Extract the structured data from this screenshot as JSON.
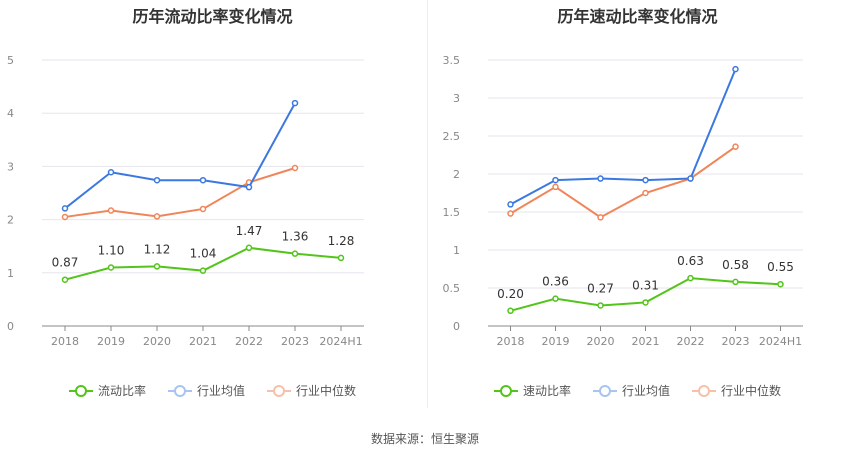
{
  "footer": "数据来源：恒生聚源",
  "chart_data": [
    {
      "type": "line",
      "title": "历年流动比率变化情况",
      "categories": [
        "2018",
        "2019",
        "2020",
        "2021",
        "2022",
        "2023",
        "2024H1"
      ],
      "ylim": [
        0,
        5
      ],
      "yticks": [
        "0",
        "1",
        "2",
        "3",
        "4",
        "5"
      ],
      "grid": true,
      "legend_position": "bottom",
      "series": [
        {
          "name": "流动比率",
          "color": "#52c41a",
          "values": [
            0.87,
            1.1,
            1.12,
            1.04,
            1.47,
            1.36,
            1.28
          ],
          "labels": [
            "0.87",
            "1.10",
            "1.12",
            "1.04",
            "1.47",
            "1.36",
            "1.28"
          ]
        },
        {
          "name": "行业均值",
          "color": "#3b78e0",
          "values": [
            2.21,
            2.89,
            2.74,
            2.74,
            2.61,
            4.19,
            null
          ]
        },
        {
          "name": "行业中位数",
          "color": "#f0855a",
          "values": [
            2.05,
            2.17,
            2.06,
            2.2,
            2.7,
            2.97,
            null
          ]
        }
      ]
    },
    {
      "type": "line",
      "title": "历年速动比率变化情况",
      "categories": [
        "2018",
        "2019",
        "2020",
        "2021",
        "2022",
        "2023",
        "2024H1"
      ],
      "ylim": [
        0,
        3.5
      ],
      "yticks": [
        "0",
        "0.5",
        "1",
        "1.5",
        "2",
        "2.5",
        "3",
        "3.5"
      ],
      "grid": true,
      "legend_position": "bottom",
      "series": [
        {
          "name": "速动比率",
          "color": "#52c41a",
          "values": [
            0.2,
            0.36,
            0.27,
            0.31,
            0.63,
            0.58,
            0.55
          ],
          "labels": [
            "0.20",
            "0.36",
            "0.27",
            "0.31",
            "0.63",
            "0.58",
            "0.55"
          ]
        },
        {
          "name": "行业均值",
          "color": "#3b78e0",
          "values": [
            1.6,
            1.92,
            1.94,
            1.92,
            1.94,
            3.38,
            null
          ]
        },
        {
          "name": "行业中位数",
          "color": "#f0855a",
          "values": [
            1.48,
            1.83,
            1.43,
            1.75,
            1.94,
            2.36,
            null
          ]
        }
      ]
    }
  ]
}
